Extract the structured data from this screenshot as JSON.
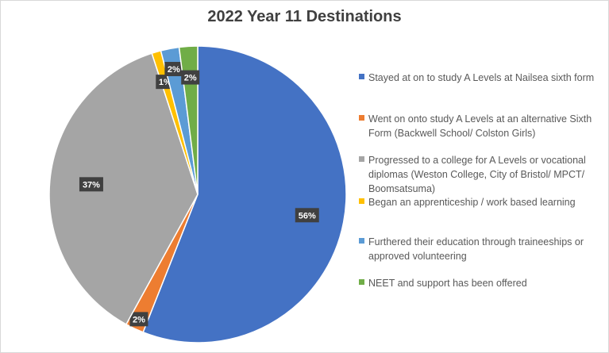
{
  "chart_data": {
    "type": "pie",
    "title": "2022 Year 11 Destinations",
    "legend_position": "right",
    "slices": [
      {
        "name": "Stayed at on to study A Levels at Nailsea sixth form",
        "value": 56,
        "label": "56%",
        "color": "#4472c4"
      },
      {
        "name": "Went on onto study A Levels at an alternative Sixth Form (Backwell School/ Colston Girls)",
        "value": 2,
        "label": "2%",
        "color": "#ed7d31"
      },
      {
        "name": "Progressed to a college for A Levels or vocational diplomas (Weston College, City of Bristol/ MPCT/ Boomsatsuma)",
        "value": 37,
        "label": "37%",
        "color": "#a5a5a5"
      },
      {
        "name": "Began an apprenticeship / work based learning",
        "value": 1,
        "label": "1%",
        "color": "#ffc000"
      },
      {
        "name": "Furthered their education through traineeships or approved volunteering",
        "value": 2,
        "label": "2%",
        "color": "#5b9bd5"
      },
      {
        "name": "NEET and support has been offered",
        "value": 2,
        "label": "2%",
        "color": "#70ad47"
      }
    ]
  }
}
